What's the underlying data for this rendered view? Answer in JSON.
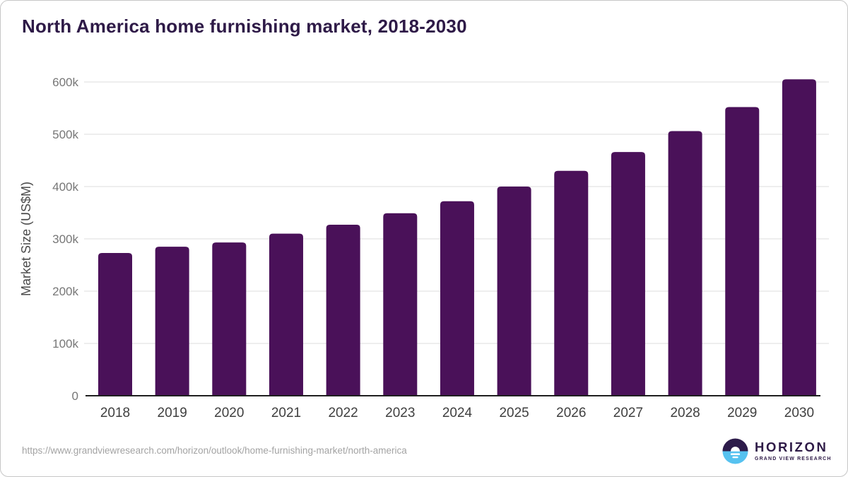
{
  "header": {
    "title": "North America home furnishing market, 2018-2030"
  },
  "chart_data": {
    "type": "bar",
    "title": "North America home furnishing market, 2018-2030",
    "categories": [
      "2018",
      "2019",
      "2020",
      "2021",
      "2022",
      "2023",
      "2024",
      "2025",
      "2026",
      "2027",
      "2028",
      "2029",
      "2030"
    ],
    "values": [
      273000,
      285000,
      293000,
      310000,
      327000,
      349000,
      372000,
      400000,
      430000,
      466000,
      506000,
      552000,
      605000
    ],
    "unit": "US$M",
    "xlabel": "",
    "ylabel": "Market Size (US$M)",
    "yticks": [
      0,
      100000,
      200000,
      300000,
      400000,
      500000,
      600000
    ],
    "ytick_labels": [
      "0",
      "100k",
      "200k",
      "300k",
      "400k",
      "500k",
      "600k"
    ],
    "ylim": [
      0,
      620000
    ],
    "grid": true,
    "legend": "none",
    "bar_color": "#4A1159"
  },
  "colors": {
    "bar": "#4A1159",
    "title": "#2E1A47",
    "grid": "#E9E9E9",
    "axis": "#1F1F1F",
    "xtick": "#3F3F3F",
    "ytick": "#777777",
    "ylabel": "#4A4A4A",
    "url_text": "#A3A3A3",
    "logo_purple": "#2D1B4A",
    "logo_blue": "#56C2F0"
  },
  "footer": {
    "source_url": "https://www.grandviewresearch.com/horizon/outlook/home-furnishing-market/north-america",
    "logo": {
      "name": "HORIZON",
      "tagline": "GRAND VIEW RESEARCH"
    }
  }
}
